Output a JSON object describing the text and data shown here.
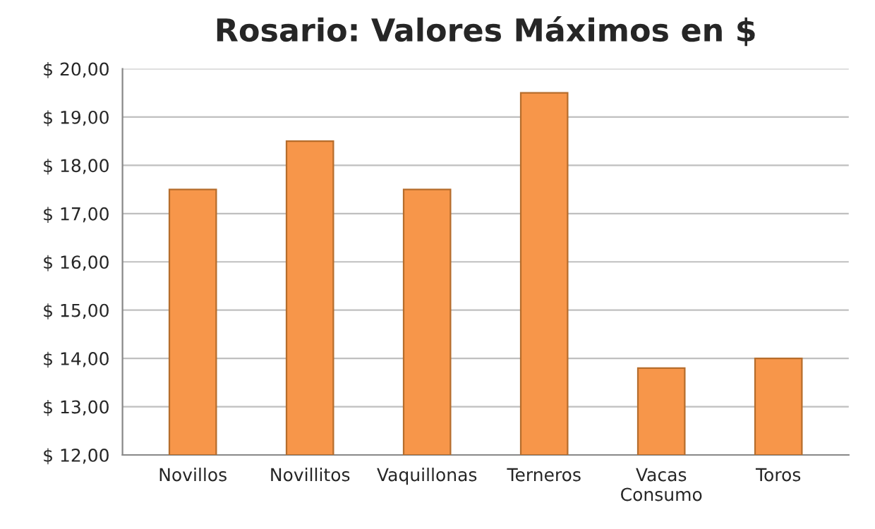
{
  "chart_data": {
    "type": "bar",
    "title": "Rosario: Valores Máximos en $",
    "categories": [
      "Novillos",
      "Novillitos",
      "Vaquillonas",
      "Terneros",
      "Vacas\nConsumo",
      "Toros"
    ],
    "values": [
      17.5,
      18.5,
      17.5,
      19.5,
      13.8,
      14.0
    ],
    "color": "#f7964a",
    "ylim": [
      12,
      20
    ],
    "yticks": [
      {
        "value": 12,
        "label": "$ 12,00"
      },
      {
        "value": 13,
        "label": "$ 13,00"
      },
      {
        "value": 14,
        "label": "$ 14,00"
      },
      {
        "value": 15,
        "label": "$ 15,00"
      },
      {
        "value": 16,
        "label": "$ 16,00"
      },
      {
        "value": 17,
        "label": "$ 17,00"
      },
      {
        "value": 18,
        "label": "$ 18,00"
      },
      {
        "value": 19,
        "label": "$ 19,00"
      },
      {
        "value": 20,
        "label": "$ 20,00"
      }
    ],
    "grid": "y"
  }
}
